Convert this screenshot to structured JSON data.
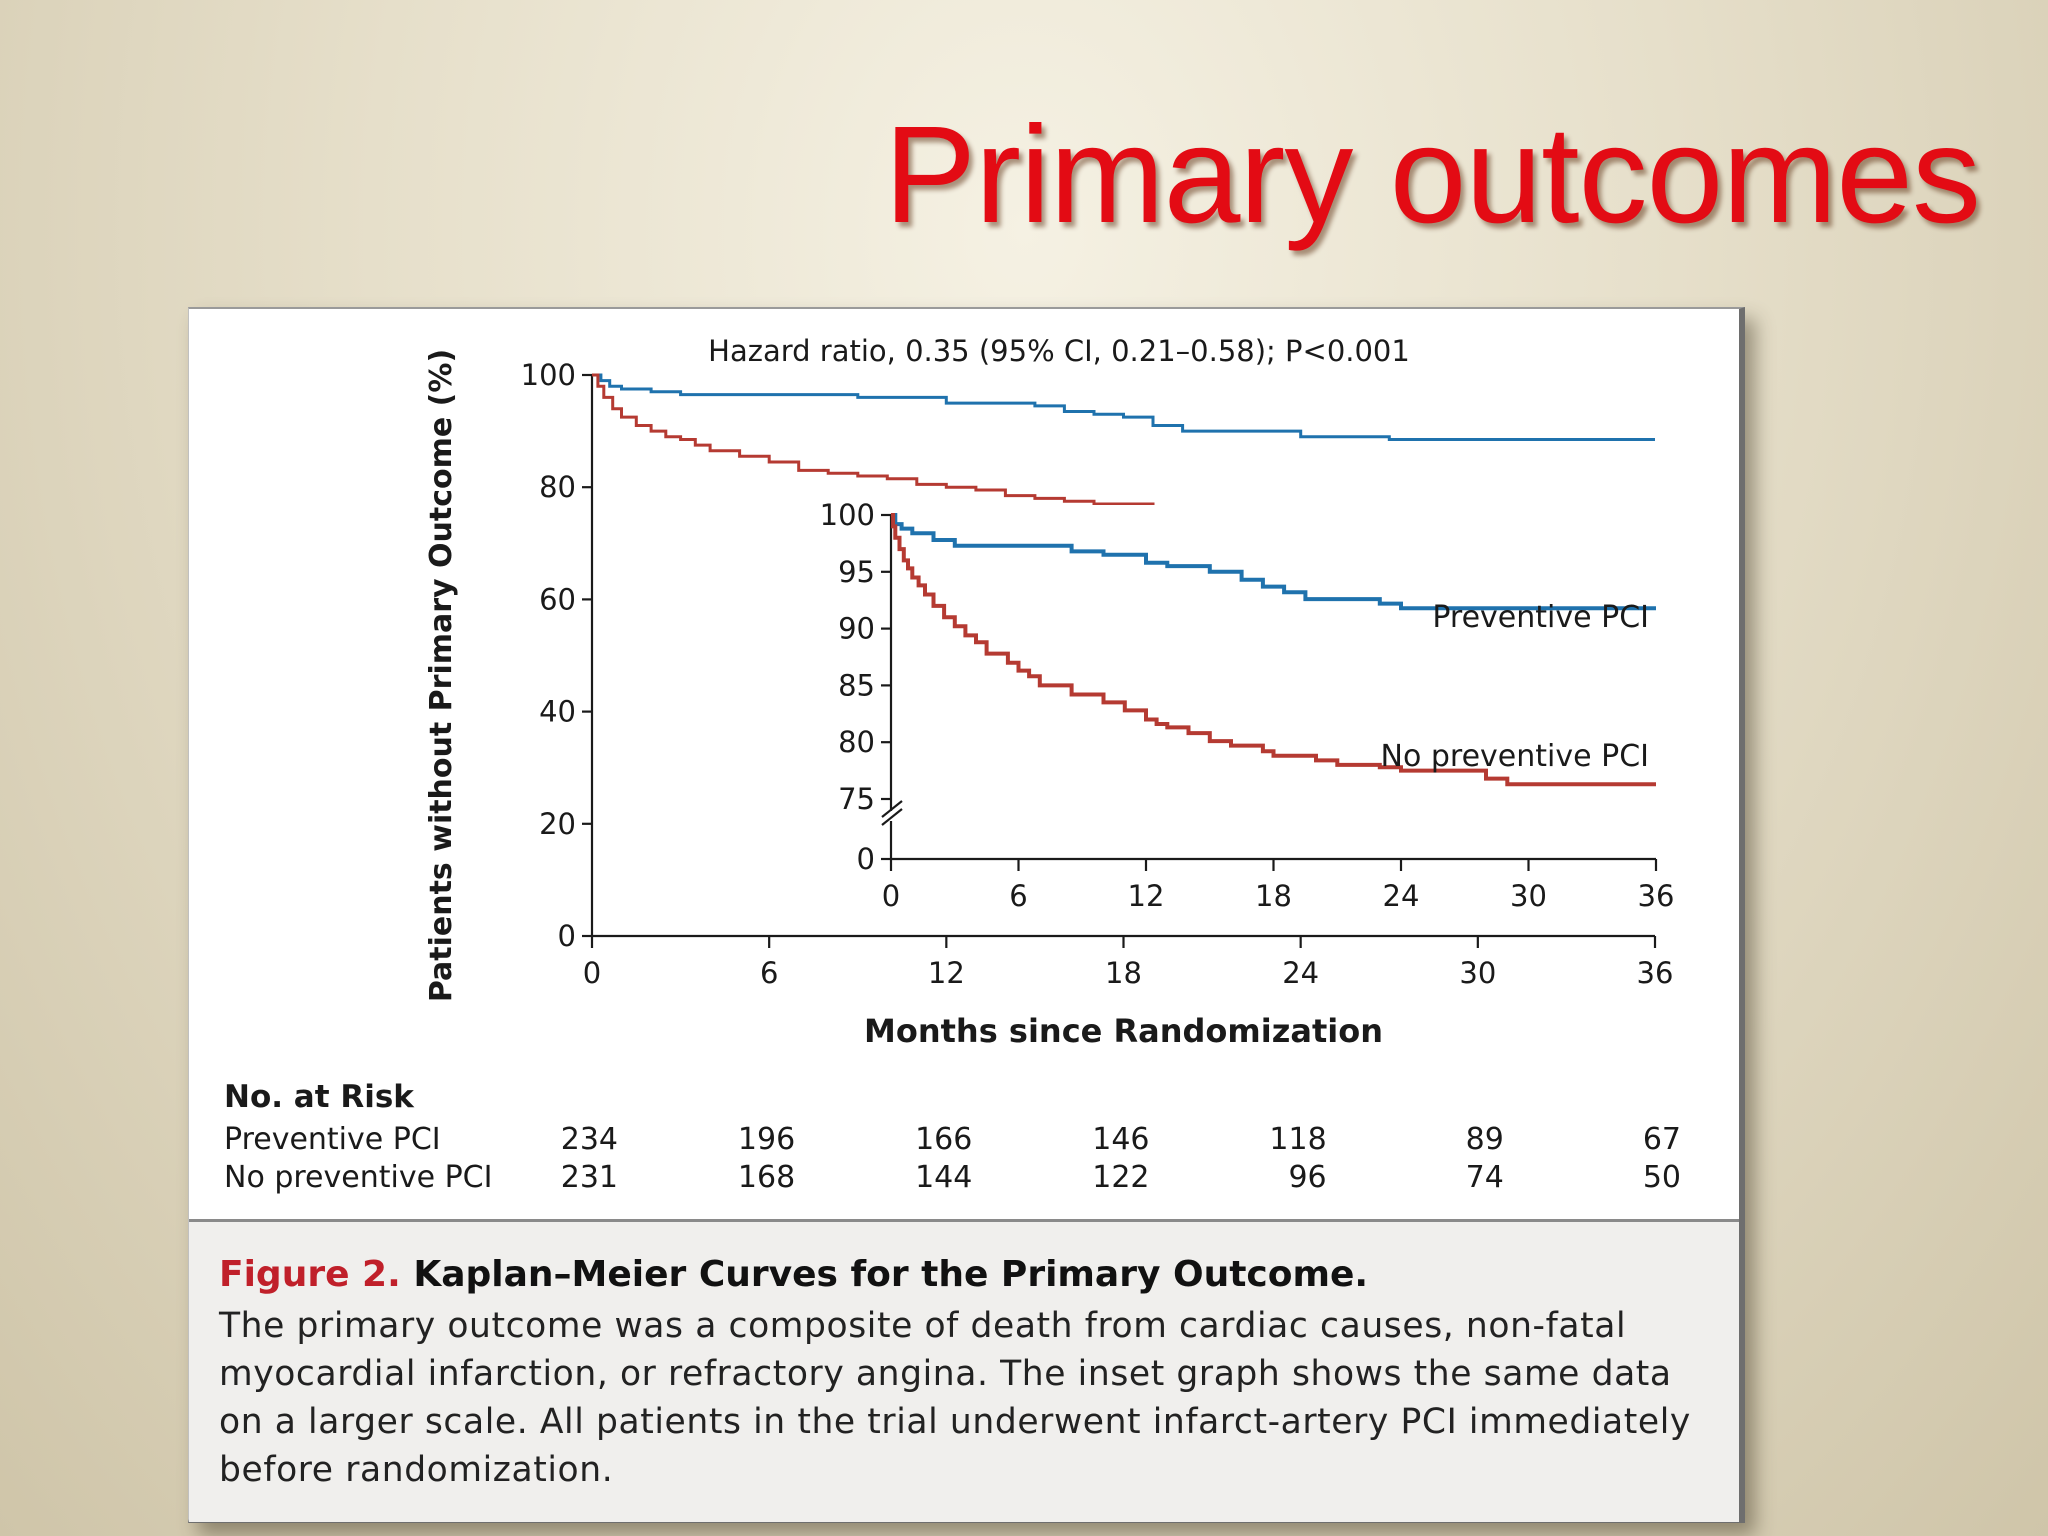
{
  "slide": {
    "title": "Primary outcomes"
  },
  "figure": {
    "label": "Figure 2.",
    "title": "Kaplan–Meier Curves for the Primary Outcome.",
    "caption": "The primary outcome was a composite of death from cardiac causes, non-fatal myocardial infarction, or refractory angina. The inset graph shows the same data on a larger scale. All patients in the trial underwent infarct-artery PCI immediately before randomization."
  },
  "chart_data": [
    {
      "type": "line",
      "step": true,
      "title": "Hazard ratio, 0.35 (95% CI, 0.21–0.58); P<0.001",
      "xlabel": "Months since Randomization",
      "ylabel": "Patients without Primary Outcome (%)",
      "xlim": [
        0,
        36
      ],
      "ylim": [
        0,
        100
      ],
      "xticks": [
        0,
        6,
        12,
        18,
        24,
        30,
        36
      ],
      "yticks": [
        0,
        20,
        40,
        60,
        80,
        100
      ],
      "colors": {
        "Preventive PCI": "#1f72ad",
        "No preventive PCI": "#b53a32"
      },
      "series": [
        {
          "name": "Preventive PCI",
          "x": [
            0,
            0.3,
            0.6,
            1,
            2,
            3,
            6,
            9,
            12,
            15,
            16,
            17,
            18,
            19,
            20,
            24,
            27,
            36
          ],
          "y": [
            100,
            99,
            98,
            97.5,
            97,
            96.5,
            96.5,
            96,
            95,
            94.5,
            93.5,
            93,
            92.5,
            91,
            90,
            89,
            88.5,
            88.5
          ]
        },
        {
          "name": "No preventive PCI",
          "x": [
            0,
            0.2,
            0.4,
            0.7,
            1,
            1.5,
            2,
            2.5,
            3,
            3.5,
            4,
            5,
            6,
            7,
            8,
            9,
            10,
            11,
            12,
            13,
            14,
            15,
            16,
            17,
            18,
            19,
            20,
            21,
            22,
            24,
            25,
            26,
            27,
            28,
            29,
            30,
            36
          ],
          "y": [
            100,
            98,
            96,
            94,
            92.5,
            91,
            90,
            89,
            88.5,
            87.5,
            86.5,
            85.5,
            84.5,
            83,
            82.5,
            82,
            81.5,
            80.5,
            80,
            79.5,
            78.5,
            78,
            77.5,
            77,
            77,
            76.5,
            76.5,
            76,
            76,
            76,
            75.5,
            75.5,
            75,
            75,
            74.8,
            74.5,
            74.5
          ]
        }
      ]
    },
    {
      "type": "line",
      "step": true,
      "inset": true,
      "xlim": [
        0,
        36
      ],
      "ylim": [
        75,
        100
      ],
      "axis_break": true,
      "xticks": [
        0,
        6,
        12,
        18,
        24,
        30,
        36
      ],
      "yticks": [
        0,
        75,
        80,
        85,
        90,
        95,
        100
      ],
      "series": [
        {
          "name": "Preventive PCI",
          "x": [
            0,
            0.2,
            0.5,
            1,
            2,
            3,
            6,
            8.5,
            10,
            12,
            13,
            15,
            16.5,
            17.5,
            18,
            18.5,
            19.5,
            22,
            23,
            24,
            36
          ],
          "y": [
            100,
            99.2,
            98.8,
            98.4,
            97.8,
            97.3,
            97.3,
            96.8,
            96.5,
            95.8,
            95.5,
            95,
            94.3,
            93.7,
            93.7,
            93.2,
            92.6,
            92.6,
            92.2,
            91.8,
            91.8
          ]
        },
        {
          "name": "No preventive PCI",
          "x": [
            0,
            0.1,
            0.2,
            0.4,
            0.6,
            0.8,
            1,
            1.3,
            1.6,
            2,
            2.5,
            3,
            3.5,
            4,
            4.5,
            5.5,
            6,
            6.5,
            7,
            8.5,
            9,
            10,
            11,
            12,
            12.5,
            13,
            14,
            15,
            16,
            17.5,
            18,
            20,
            21,
            22,
            23,
            24,
            27,
            28,
            29,
            36
          ],
          "y": [
            100,
            99,
            98,
            97,
            96,
            95.3,
            94.5,
            93.8,
            93,
            92,
            91,
            90.2,
            89.4,
            88.8,
            87.8,
            87,
            86.3,
            85.8,
            85,
            84.2,
            84.2,
            83.5,
            82.8,
            82,
            81.6,
            81.3,
            80.8,
            80.1,
            79.7,
            79.2,
            78.8,
            78.4,
            78,
            78,
            77.8,
            77.5,
            77.5,
            76.8,
            76.3,
            76.3
          ]
        }
      ],
      "annotations": [
        "Preventive PCI",
        "No preventive PCI"
      ]
    }
  ],
  "risk_table": {
    "heading": "No. at Risk",
    "rows": [
      {
        "label": "Preventive PCI",
        "values": [
          234,
          196,
          166,
          146,
          118,
          89,
          67
        ]
      },
      {
        "label": "No preventive PCI",
        "values": [
          231,
          168,
          144,
          122,
          96,
          74,
          50
        ]
      }
    ]
  }
}
